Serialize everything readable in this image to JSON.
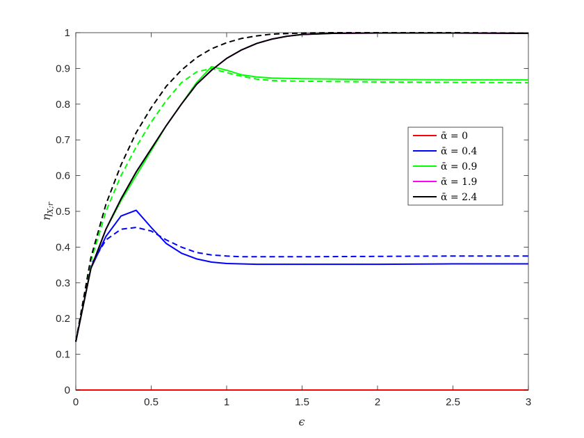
{
  "chart_data": {
    "type": "line",
    "title": "",
    "xlabel": "ϵ",
    "ylabel": "η",
    "ylabel_sub": "X;r",
    "xlim": [
      0,
      3
    ],
    "ylim": [
      0,
      1
    ],
    "xticks": [
      0,
      0.5,
      1,
      1.5,
      2,
      2.5,
      3
    ],
    "xtick_labels": [
      "0",
      "0.5",
      "1",
      "1.5",
      "2",
      "2.5",
      "3"
    ],
    "yticks": [
      0,
      0.1,
      0.2,
      0.3,
      0.4,
      0.5,
      0.6,
      0.7,
      0.8,
      0.9,
      1
    ],
    "ytick_labels": [
      "0",
      "0.1",
      "0.2",
      "0.3",
      "0.4",
      "0.5",
      "0.6",
      "0.7",
      "0.8",
      "0.9",
      "1"
    ],
    "grid": false,
    "legend_position": "right",
    "series": [
      {
        "name": "ᾱ = 0",
        "color": "#ff0000",
        "style": "solid",
        "legend": true,
        "x": [
          0,
          3
        ],
        "y": [
          0,
          0
        ]
      },
      {
        "name": "ᾱ = 0.4",
        "color": "#0000ff",
        "style": "solid",
        "legend": true,
        "x": [
          0,
          0.1,
          0.2,
          0.3,
          0.4,
          0.5,
          0.6,
          0.7,
          0.8,
          0.9,
          1.0,
          1.2,
          1.5,
          2.0,
          2.5,
          3.0
        ],
        "y": [
          0.135,
          0.34,
          0.43,
          0.487,
          0.503,
          0.455,
          0.41,
          0.383,
          0.367,
          0.358,
          0.354,
          0.352,
          0.352,
          0.352,
          0.353,
          0.353
        ]
      },
      {
        "name": "",
        "color": "#0000ff",
        "style": "dashed",
        "legend": false,
        "x": [
          0,
          0.1,
          0.2,
          0.3,
          0.4,
          0.5,
          0.6,
          0.7,
          0.8,
          0.9,
          1.0,
          1.1,
          1.5,
          2.0,
          2.5,
          3.0
        ],
        "y": [
          0.135,
          0.35,
          0.42,
          0.45,
          0.455,
          0.445,
          0.42,
          0.4,
          0.385,
          0.378,
          0.375,
          0.373,
          0.373,
          0.374,
          0.375,
          0.375
        ]
      },
      {
        "name": "ᾱ = 0.9",
        "color": "#00ff00",
        "style": "solid",
        "legend": true,
        "x": [
          0,
          0.1,
          0.2,
          0.3,
          0.4,
          0.5,
          0.6,
          0.7,
          0.8,
          0.9,
          1.0,
          1.1,
          1.2,
          1.3,
          1.5,
          2.0,
          2.5,
          3.0
        ],
        "y": [
          0.135,
          0.34,
          0.45,
          0.53,
          0.6,
          0.67,
          0.74,
          0.8,
          0.86,
          0.905,
          0.895,
          0.882,
          0.876,
          0.873,
          0.871,
          0.869,
          0.868,
          0.868
        ]
      },
      {
        "name": "",
        "color": "#00ff00",
        "style": "dashed",
        "legend": false,
        "x": [
          0,
          0.1,
          0.2,
          0.3,
          0.4,
          0.5,
          0.6,
          0.7,
          0.8,
          0.9,
          1.0,
          1.1,
          1.2,
          1.3,
          1.5,
          2.0,
          2.5,
          3.0
        ],
        "y": [
          0.135,
          0.36,
          0.5,
          0.6,
          0.68,
          0.75,
          0.81,
          0.86,
          0.89,
          0.9,
          0.888,
          0.878,
          0.87,
          0.866,
          0.864,
          0.862,
          0.861,
          0.86
        ]
      },
      {
        "name": "ᾱ = 1.9",
        "color": "#ff00ff",
        "style": "solid",
        "legend": true,
        "x": [
          0,
          0.1,
          0.2,
          0.3,
          0.4,
          0.5,
          0.6,
          0.7,
          0.8,
          0.9,
          1.0,
          1.1,
          1.2,
          1.3,
          1.4,
          1.5,
          1.7,
          2.0,
          2.5,
          3.0
        ],
        "y": [
          0.135,
          0.34,
          0.45,
          0.535,
          0.61,
          0.675,
          0.74,
          0.8,
          0.855,
          0.895,
          0.928,
          0.952,
          0.97,
          0.982,
          0.99,
          0.995,
          0.998,
          0.999,
          0.999,
          0.998
        ]
      },
      {
        "name": "ᾱ = 2.4",
        "color": "#000000",
        "style": "solid",
        "legend": true,
        "x": [
          0,
          0.1,
          0.2,
          0.3,
          0.4,
          0.5,
          0.6,
          0.7,
          0.8,
          0.9,
          1.0,
          1.1,
          1.2,
          1.3,
          1.4,
          1.5,
          1.7,
          2.0,
          2.5,
          3.0
        ],
        "y": [
          0.135,
          0.34,
          0.45,
          0.535,
          0.61,
          0.675,
          0.74,
          0.8,
          0.855,
          0.895,
          0.928,
          0.952,
          0.97,
          0.982,
          0.99,
          0.995,
          0.998,
          0.999,
          0.999,
          0.998
        ]
      },
      {
        "name": "",
        "color": "#000000",
        "style": "dashed",
        "legend": false,
        "x": [
          0,
          0.1,
          0.2,
          0.3,
          0.4,
          0.5,
          0.6,
          0.7,
          0.8,
          0.9,
          1.0,
          1.1,
          1.2,
          1.3,
          1.5,
          1.7,
          2.0,
          2.5,
          3.0
        ],
        "y": [
          0.135,
          0.37,
          0.52,
          0.63,
          0.72,
          0.79,
          0.85,
          0.895,
          0.93,
          0.955,
          0.972,
          0.984,
          0.991,
          0.996,
          0.999,
          1.0,
          1.0,
          1.0,
          0.999
        ]
      }
    ]
  }
}
